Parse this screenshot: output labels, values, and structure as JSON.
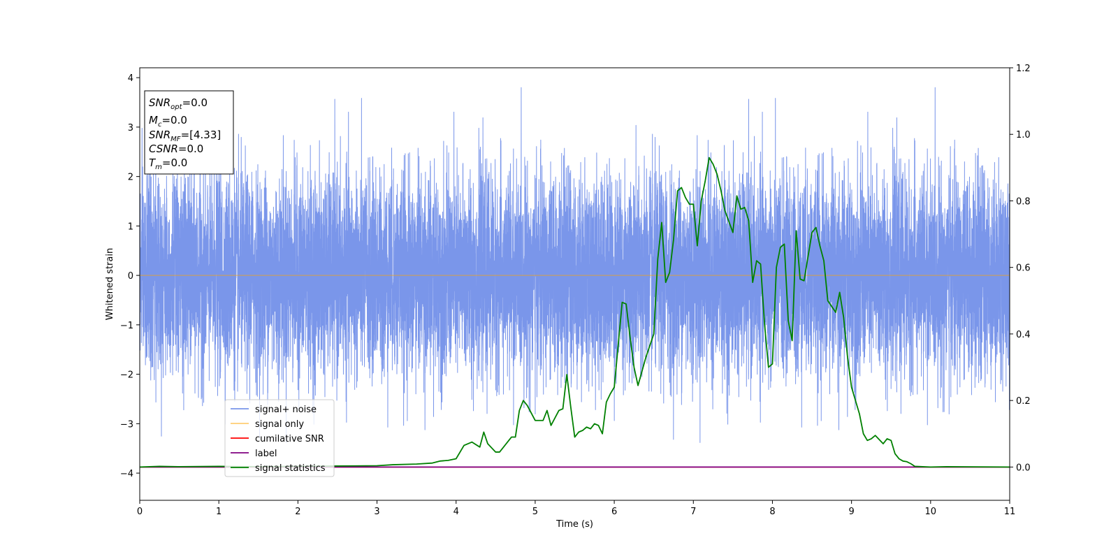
{
  "chart_data": {
    "type": "line",
    "title": "",
    "xlabel": "Time (s)",
    "ylabel": "Whitened strain",
    "xlim": [
      0,
      11
    ],
    "ylim": [
      -4.55,
      4.2
    ],
    "y2lim": [
      -0.1,
      1.2
    ],
    "xticks": [
      0,
      1,
      2,
      3,
      4,
      5,
      6,
      7,
      8,
      9,
      10,
      11
    ],
    "yticks": [
      -4,
      -3,
      -2,
      -1,
      0,
      1,
      2,
      3,
      4
    ],
    "y2ticks": [
      0.0,
      0.2,
      0.4,
      0.6,
      0.8,
      1.0,
      1.2
    ],
    "grid": false,
    "legend_position": "lower-left",
    "annotation": {
      "snr_opt": {
        "base": "SNR",
        "sub": "opt",
        "value": "=0.0"
      },
      "mc": {
        "base": "M",
        "sub": "c",
        "value": "=0.0"
      },
      "snr_mf": {
        "base": "SNR",
        "sub": "MF",
        "value": "=[4.33]"
      },
      "csnr": {
        "base": "CSNR",
        "value": "=0.0"
      },
      "tm": {
        "base": "T",
        "sub": "m",
        "value": "=0.0"
      }
    },
    "series": [
      {
        "name": "signal+ noise",
        "color": "#4169e1",
        "axis": "left",
        "kind": "noise",
        "x_range": [
          0,
          11
        ],
        "samples": 11000,
        "std": 1.0,
        "min": -4.15,
        "max": 3.8
      },
      {
        "name": "signal only",
        "color": "#ffa500",
        "axis": "left",
        "x": [
          0,
          11
        ],
        "y": [
          0,
          0
        ]
      },
      {
        "name": "cumilative SNR",
        "color": "#ff0000",
        "axis": "right",
        "x": [
          0,
          11
        ],
        "y": [
          0,
          0
        ]
      },
      {
        "name": "label",
        "color": "#800080",
        "axis": "right",
        "x": [
          0,
          11
        ],
        "y": [
          0,
          0
        ]
      },
      {
        "name": "signal statistics",
        "color": "#008000",
        "axis": "right",
        "x": [
          0,
          0.25,
          0.5,
          1.0,
          1.5,
          2.0,
          2.5,
          3.0,
          3.2,
          3.5,
          3.7,
          3.8,
          3.9,
          4.0,
          4.1,
          4.15,
          4.2,
          4.3,
          4.35,
          4.4,
          4.5,
          4.55,
          4.6,
          4.7,
          4.75,
          4.8,
          4.85,
          4.9,
          5.0,
          5.1,
          5.15,
          5.2,
          5.3,
          5.35,
          5.4,
          5.45,
          5.5,
          5.55,
          5.6,
          5.65,
          5.7,
          5.75,
          5.8,
          5.85,
          5.9,
          5.95,
          6.0,
          6.1,
          6.15,
          6.2,
          6.25,
          6.3,
          6.4,
          6.5,
          6.55,
          6.6,
          6.65,
          6.7,
          6.75,
          6.8,
          6.85,
          6.9,
          6.95,
          7.0,
          7.05,
          7.1,
          7.15,
          7.2,
          7.25,
          7.3,
          7.35,
          7.4,
          7.5,
          7.55,
          7.6,
          7.65,
          7.7,
          7.75,
          7.8,
          7.85,
          7.9,
          7.95,
          8.0,
          8.05,
          8.1,
          8.15,
          8.2,
          8.25,
          8.3,
          8.35,
          8.4,
          8.5,
          8.55,
          8.6,
          8.65,
          8.7,
          8.8,
          8.85,
          8.9,
          8.95,
          9.0,
          9.1,
          9.15,
          9.2,
          9.25,
          9.3,
          9.4,
          9.45,
          9.5,
          9.55,
          9.6,
          9.65,
          9.7,
          9.75,
          9.8,
          10.0,
          10.2,
          11.0
        ],
        "y": [
          0.0,
          0.002,
          0.001,
          0.002,
          0.001,
          0.002,
          0.003,
          0.004,
          0.007,
          0.009,
          0.012,
          0.018,
          0.02,
          0.025,
          0.065,
          0.07,
          0.075,
          0.06,
          0.105,
          0.07,
          0.045,
          0.045,
          0.06,
          0.09,
          0.09,
          0.17,
          0.2,
          0.185,
          0.14,
          0.14,
          0.17,
          0.125,
          0.17,
          0.175,
          0.278,
          0.18,
          0.09,
          0.105,
          0.11,
          0.12,
          0.115,
          0.13,
          0.125,
          0.1,
          0.195,
          0.22,
          0.24,
          0.495,
          0.49,
          0.39,
          0.3,
          0.245,
          0.33,
          0.4,
          0.625,
          0.735,
          0.555,
          0.585,
          0.685,
          0.83,
          0.84,
          0.81,
          0.79,
          0.79,
          0.665,
          0.8,
          0.86,
          0.93,
          0.91,
          0.88,
          0.83,
          0.77,
          0.705,
          0.815,
          0.775,
          0.78,
          0.74,
          0.555,
          0.62,
          0.61,
          0.43,
          0.3,
          0.31,
          0.6,
          0.66,
          0.67,
          0.44,
          0.38,
          0.71,
          0.565,
          0.56,
          0.705,
          0.72,
          0.665,
          0.62,
          0.5,
          0.465,
          0.525,
          0.45,
          0.33,
          0.24,
          0.16,
          0.1,
          0.08,
          0.085,
          0.095,
          0.07,
          0.085,
          0.08,
          0.04,
          0.025,
          0.018,
          0.016,
          0.01,
          0.002,
          0.0,
          0.001,
          0.0
        ]
      }
    ]
  }
}
